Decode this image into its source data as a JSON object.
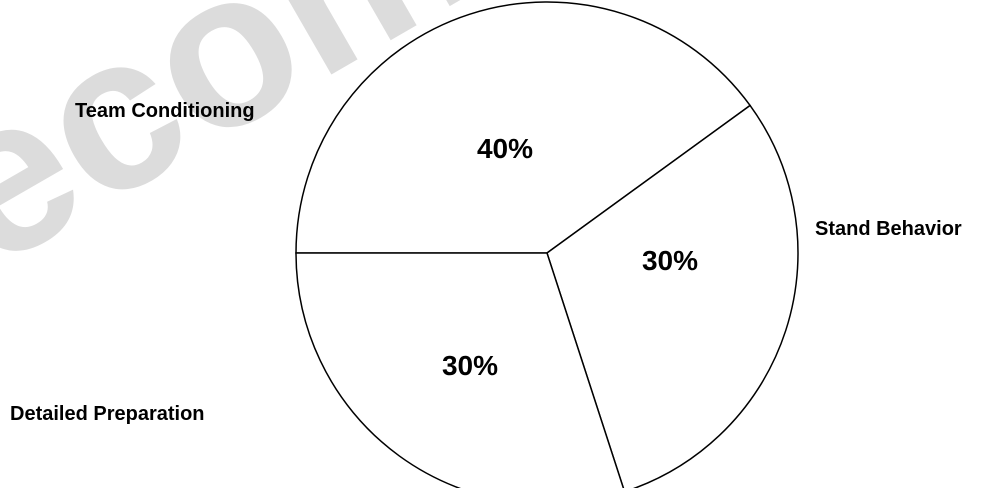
{
  "watermark_text": "recommended",
  "chart_data": {
    "type": "pie",
    "categories": [
      "Team Conditioning",
      "Stand Behavior",
      "Detailed Preparation"
    ],
    "values": [
      40,
      30,
      30
    ],
    "data_labels": [
      "40%",
      "30%",
      "30%"
    ],
    "title": "",
    "legend": "none",
    "colors": {
      "fill": "#ffffff",
      "stroke": "#000000",
      "watermark": "#dcdcdc"
    }
  }
}
